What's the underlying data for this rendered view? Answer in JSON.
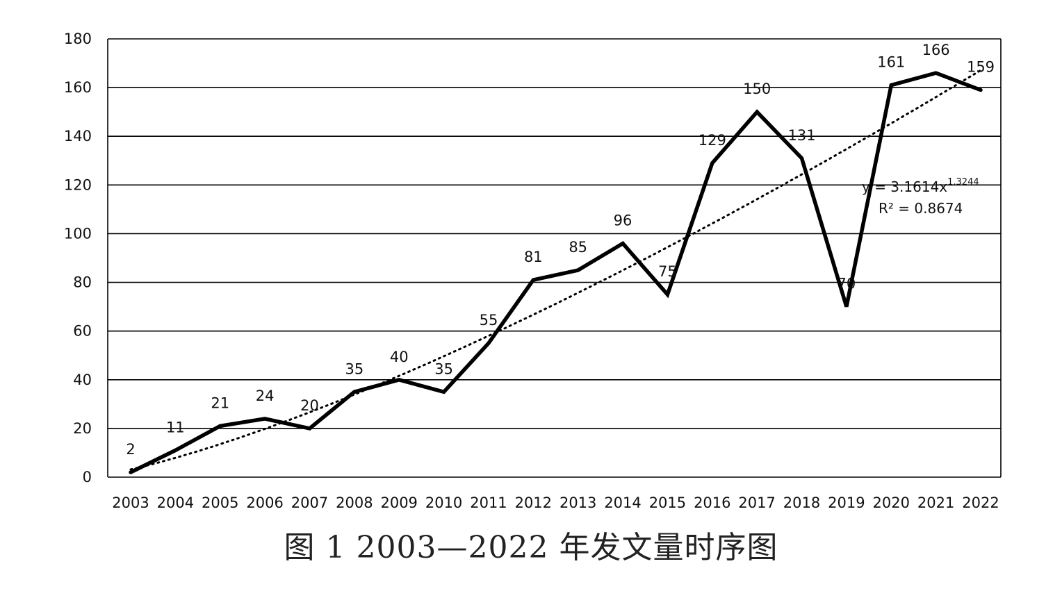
{
  "caption": "图 1    2003—2022 年发文量时序图",
  "chart_data": {
    "type": "line",
    "categories": [
      "2003",
      "2004",
      "2005",
      "2006",
      "2007",
      "2008",
      "2009",
      "2010",
      "2011",
      "2012",
      "2013",
      "2014",
      "2015",
      "2016",
      "2017",
      "2018",
      "2019",
      "2020",
      "2021",
      "2022"
    ],
    "series": [
      {
        "values": [
          2,
          11,
          21,
          24,
          20,
          35,
          40,
          35,
          55,
          81,
          85,
          96,
          75,
          129,
          150,
          131,
          70,
          161,
          166,
          159
        ]
      }
    ],
    "trendline": {
      "type": "power",
      "a": 3.1614,
      "b": 1.3244,
      "equation_main": "y = 3.1614x",
      "equation_exp": "1.3244",
      "r_squared_label": "R² = 0.8674"
    },
    "ylim": [
      0,
      180
    ],
    "yticks": [
      0,
      20,
      40,
      60,
      80,
      100,
      120,
      140,
      160,
      180
    ],
    "grid": true,
    "line_color": "#000000",
    "grid_color": "#000000",
    "xlabel": "",
    "ylabel": ""
  }
}
